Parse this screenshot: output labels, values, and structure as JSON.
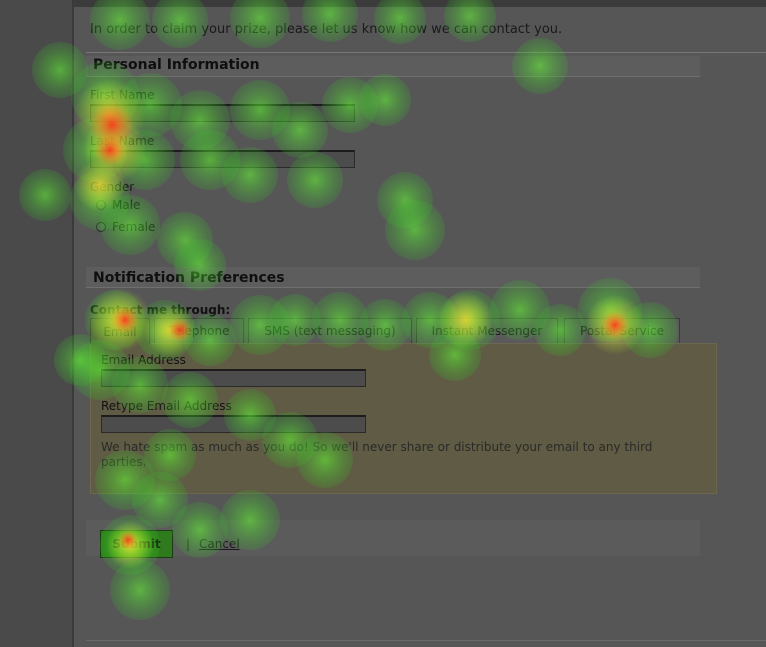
{
  "intro": "In order to claim your prize, please let us know how we can contact you.",
  "personal": {
    "title": "Personal Information",
    "first_name_label": "First Name",
    "first_name_value": "",
    "last_name_label": "Last Name",
    "last_name_value": "",
    "gender_label": "Gender",
    "gender_options": [
      "Male",
      "Female"
    ]
  },
  "notification": {
    "title": "Notification Preferences",
    "contact_label": "Contact me through:",
    "tabs": [
      "Email",
      "Telephone",
      "SMS (text messaging)",
      "Instant Messenger",
      "Postal Service"
    ],
    "active_tab": "Email",
    "email_label": "Email Address",
    "email_value": "",
    "retype_label": "Retype Email Address",
    "retype_value": "",
    "note": "We hate spam as much as you do! So we'll never share or distribute your email to any third parties."
  },
  "actions": {
    "submit_label": "Submit",
    "separator": "|",
    "cancel_label": "Cancel"
  },
  "colors": {
    "submit_bg": "#2f7a1c",
    "panel_bg": "#5f5b44",
    "page_bg": "#505050"
  }
}
